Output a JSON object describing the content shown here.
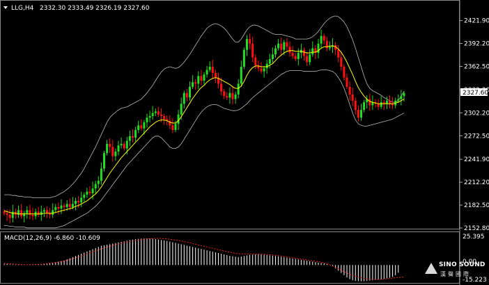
{
  "header": {
    "symbol": "LLG,H4",
    "ohlc": "2332.30 2333.49 2326.19 2327.60"
  },
  "macd": {
    "label": "MACD(12,26,9) -6.860 -10.609",
    "axis_labels": [
      "25.395",
      "0.00",
      "-15.223"
    ]
  },
  "price_box": "2327.60",
  "logo": {
    "line1": "SINO SOUND",
    "line2": "漢聲國際"
  },
  "colors": {
    "up": "#22dd22",
    "down": "#ff1010",
    "ma": "#ffff00",
    "bands": "#bbbbbb",
    "signal": "#ff2020",
    "hist": "#ffffff"
  },
  "chart_data": {
    "type": "candlestick",
    "ylim": [
      2152.8,
      2436.0
    ],
    "yticks": [
      2421.9,
      2392.2,
      2362.5,
      2332.2,
      2302.2,
      2272.5,
      2241.9,
      2212.2,
      2182.5,
      2152.8
    ],
    "ytick_labels": [
      "2421.90",
      "2392.20",
      "2362.50",
      "2332.20",
      "2302.20",
      "2272.50",
      "2241.90",
      "2212.20",
      "2182.50",
      "2152.80"
    ],
    "close": [
      2172,
      2170,
      2166,
      2174,
      2170,
      2176,
      2168,
      2172,
      2176,
      2170,
      2168,
      2174,
      2170,
      2174,
      2176,
      2172,
      2170,
      2176,
      2180,
      2178,
      2182,
      2180,
      2184,
      2180,
      2184,
      2188,
      2186,
      2192,
      2196,
      2200,
      2198,
      2204,
      2210,
      2214,
      2230,
      2250,
      2262,
      2258,
      2246,
      2252,
      2260,
      2262,
      2256,
      2266,
      2272,
      2270,
      2280,
      2286,
      2282,
      2290,
      2296,
      2298,
      2302,
      2304,
      2300,
      2298,
      2294,
      2292,
      2286,
      2280,
      2288,
      2300,
      2314,
      2328,
      2322,
      2336,
      2342,
      2340,
      2350,
      2344,
      2352,
      2358,
      2362,
      2354,
      2348,
      2340,
      2330,
      2324,
      2322,
      2328,
      2320,
      2326,
      2340,
      2362,
      2384,
      2398,
      2392,
      2374,
      2364,
      2360,
      2356,
      2360,
      2366,
      2372,
      2378,
      2386,
      2392,
      2384,
      2394,
      2388,
      2380,
      2376,
      2372,
      2380,
      2384,
      2376,
      2368,
      2378,
      2386,
      2380,
      2392,
      2402,
      2396,
      2386,
      2388,
      2390,
      2384,
      2374,
      2362,
      2348,
      2336,
      2326,
      2318,
      2306,
      2296,
      2306,
      2316,
      2320,
      2312,
      2316,
      2314,
      2310,
      2316,
      2314,
      2318,
      2314,
      2312,
      2318,
      2320,
      2324,
      2327.6
    ],
    "ma": [
      2175,
      2174,
      2173,
      2172,
      2172,
      2171,
      2171,
      2171,
      2171,
      2171,
      2171,
      2171,
      2171,
      2171,
      2172,
      2172,
      2172,
      2172,
      2173,
      2174,
      2175,
      2176,
      2177,
      2178,
      2179,
      2181,
      2182,
      2184,
      2186,
      2188,
      2191,
      2194,
      2197,
      2201,
      2206,
      2212,
      2218,
      2224,
      2229,
      2234,
      2239,
      2244,
      2248,
      2252,
      2256,
      2260,
      2264,
      2268,
      2272,
      2276,
      2280,
      2284,
      2287,
      2290,
      2292,
      2293,
      2293,
      2292,
      2290,
      2289,
      2289,
      2292,
      2297,
      2303,
      2309,
      2315,
      2321,
      2326,
      2331,
      2335,
      2338,
      2342,
      2345,
      2347,
      2348,
      2347,
      2345,
      2343,
      2341,
      2339,
      2336,
      2334,
      2334,
      2337,
      2343,
      2351,
      2357,
      2361,
      2363,
      2363,
      2362,
      2362,
      2362,
      2364,
      2366,
      2370,
      2374,
      2377,
      2380,
      2382,
      2383,
      2383,
      2382,
      2382,
      2382,
      2381,
      2380,
      2380,
      2381,
      2381,
      2383,
      2386,
      2388,
      2388,
      2389,
      2389,
      2388,
      2385,
      2381,
      2375,
      2368,
      2360,
      2352,
      2343,
      2335,
      2329,
      2324,
      2320,
      2317,
      2316,
      2315,
      2314,
      2314,
      2314,
      2314,
      2314,
      2314,
      2315,
      2316,
      2318,
      2320
    ],
    "bb_upper": [
      2196,
      2196,
      2196,
      2195,
      2195,
      2194,
      2194,
      2193,
      2193,
      2193,
      2192,
      2192,
      2192,
      2192,
      2192,
      2192,
      2192,
      2193,
      2194,
      2196,
      2198,
      2200,
      2203,
      2206,
      2210,
      2214,
      2219,
      2224,
      2230,
      2237,
      2244,
      2251,
      2258,
      2266,
      2274,
      2282,
      2290,
      2296,
      2300,
      2303,
      2306,
      2308,
      2309,
      2310,
      2312,
      2314,
      2316,
      2318,
      2320,
      2324,
      2328,
      2333,
      2338,
      2344,
      2350,
      2355,
      2359,
      2361,
      2362,
      2361,
      2360,
      2361,
      2364,
      2368,
      2373,
      2378,
      2384,
      2390,
      2396,
      2402,
      2407,
      2412,
      2415,
      2417,
      2418,
      2417,
      2415,
      2412,
      2408,
      2403,
      2398,
      2394,
      2394,
      2398,
      2404,
      2410,
      2414,
      2416,
      2416,
      2415,
      2413,
      2411,
      2409,
      2407,
      2405,
      2404,
      2404,
      2404,
      2403,
      2402,
      2401,
      2400,
      2398,
      2398,
      2398,
      2398,
      2398,
      2399,
      2401,
      2404,
      2408,
      2413,
      2418,
      2422,
      2425,
      2427,
      2428,
      2427,
      2424,
      2420,
      2414,
      2406,
      2397,
      2386,
      2374,
      2362,
      2350,
      2340,
      2334,
      2331,
      2329,
      2327,
      2325,
      2322,
      2320,
      2318,
      2316,
      2316,
      2318,
      2324,
      2330
    ],
    "bb_lower": [
      2156,
      2156,
      2155,
      2155,
      2154,
      2154,
      2154,
      2154,
      2153,
      2153,
      2153,
      2153,
      2153,
      2153,
      2153,
      2153,
      2153,
      2153,
      2153,
      2154,
      2155,
      2156,
      2158,
      2160,
      2162,
      2164,
      2166,
      2168,
      2170,
      2172,
      2175,
      2178,
      2181,
      2185,
      2189,
      2194,
      2199,
      2204,
      2209,
      2214,
      2219,
      2224,
      2229,
      2234,
      2238,
      2242,
      2246,
      2250,
      2254,
      2258,
      2262,
      2266,
      2270,
      2272,
      2272,
      2270,
      2266,
      2262,
      2258,
      2256,
      2256,
      2258,
      2262,
      2268,
      2274,
      2280,
      2286,
      2292,
      2298,
      2303,
      2307,
      2310,
      2312,
      2313,
      2313,
      2312,
      2310,
      2308,
      2307,
      2306,
      2305,
      2305,
      2306,
      2308,
      2311,
      2314,
      2318,
      2322,
      2325,
      2328,
      2331,
      2334,
      2337,
      2340,
      2343,
      2346,
      2349,
      2352,
      2354,
      2356,
      2357,
      2357,
      2357,
      2357,
      2357,
      2356,
      2356,
      2356,
      2356,
      2356,
      2357,
      2358,
      2358,
      2358,
      2357,
      2356,
      2353,
      2348,
      2342,
      2334,
      2324,
      2313,
      2302,
      2293,
      2288,
      2286,
      2285,
      2285,
      2286,
      2287,
      2288,
      2289,
      2290,
      2291,
      2292,
      2293,
      2294,
      2296,
      2298,
      2300,
      2302
    ],
    "macd_hist": [
      1,
      1,
      0.5,
      0.4,
      0.3,
      0.2,
      0.1,
      0,
      0,
      0.2,
      0.4,
      0.6,
      0.8,
      1,
      1.2,
      1.5,
      1.8,
      2,
      2.5,
      3,
      3.5,
      4,
      5,
      6,
      7,
      8,
      9,
      10,
      11,
      12,
      13,
      14,
      15,
      16,
      17,
      17.5,
      18,
      18.5,
      19,
      19.5,
      20,
      20.5,
      21,
      21.5,
      22,
      22.5,
      23,
      23.2,
      23.4,
      23.5,
      23.6,
      23.5,
      23.3,
      23,
      22.6,
      22.2,
      21.8,
      21.3,
      20.8,
      20.2,
      19.6,
      19,
      18.4,
      17.8,
      17.2,
      16.6,
      16,
      15.4,
      14.8,
      14.2,
      13.6,
      13,
      12.4,
      11.8,
      11.2,
      10.6,
      10,
      9.4,
      8.8,
      8.2,
      7.8,
      7.4,
      7,
      7.5,
      8,
      8.5,
      9,
      9.2,
      9.4,
      9.4,
      9.3,
      9.1,
      8.9,
      8.6,
      8.3,
      8,
      7.7,
      7.4,
      7,
      6.6,
      6.2,
      5.8,
      5.4,
      5,
      4.6,
      4.2,
      3.8,
      3.4,
      3,
      2.6,
      2.2,
      1.8,
      1.4,
      1,
      0.4,
      -1,
      -3,
      -5,
      -7,
      -9,
      -11,
      -12.5,
      -13.5,
      -14,
      -14.3,
      -14.4,
      -14.3,
      -14.1,
      -13.8,
      -13.5,
      -13.2,
      -12.9,
      -12.6,
      -12.2,
      -11.8,
      -11.2,
      -10.6,
      -9,
      -6.86
    ],
    "macd_signal": [
      1.5,
      1.3,
      1.1,
      0.9,
      0.7,
      0.5,
      0.4,
      0.3,
      0.3,
      0.3,
      0.4,
      0.5,
      0.6,
      0.8,
      1,
      1.2,
      1.5,
      1.8,
      2.1,
      2.5,
      3,
      3.5,
      4.1,
      4.8,
      5.5,
      6.3,
      7.1,
      8,
      8.9,
      9.8,
      10.7,
      11.6,
      12.5,
      13.4,
      14.3,
      15.1,
      15.9,
      16.6,
      17.3,
      18,
      18.6,
      19.2,
      19.8,
      20.3,
      20.8,
      21.3,
      21.7,
      22.1,
      22.5,
      22.8,
      23.1,
      23.3,
      23.5,
      23.6,
      23.6,
      23.5,
      23.3,
      23.1,
      22.8,
      22.5,
      22.1,
      21.7,
      21.2,
      20.7,
      20.2,
      19.6,
      19,
      18.4,
      17.8,
      17.2,
      16.6,
      16,
      15.4,
      14.8,
      14.2,
      13.6,
      13,
      12.4,
      11.8,
      11.3,
      10.8,
      10.4,
      10.1,
      9.9,
      9.8,
      9.8,
      9.8,
      9.8,
      9.8,
      9.7,
      9.6,
      9.5,
      9.3,
      9.1,
      8.9,
      8.6,
      8.3,
      8,
      7.7,
      7.3,
      6.9,
      6.5,
      6.1,
      5.7,
      5.3,
      4.9,
      4.5,
      4.1,
      3.7,
      3.3,
      2.9,
      2.4,
      1.9,
      1.2,
      0.3,
      -0.8,
      -2,
      -3.3,
      -4.6,
      -5.9,
      -7.1,
      -8.2,
      -9.2,
      -10,
      -10.7,
      -11.3,
      -11.8,
      -12.2,
      -12.5,
      -12.7,
      -12.8,
      -12.8,
      -12.7,
      -12.5,
      -12.2,
      -11.9,
      -11.6,
      -11.3,
      -11,
      -10.8,
      -10.609
    ],
    "macd_ylim": [
      -15.223,
      25.395
    ]
  }
}
